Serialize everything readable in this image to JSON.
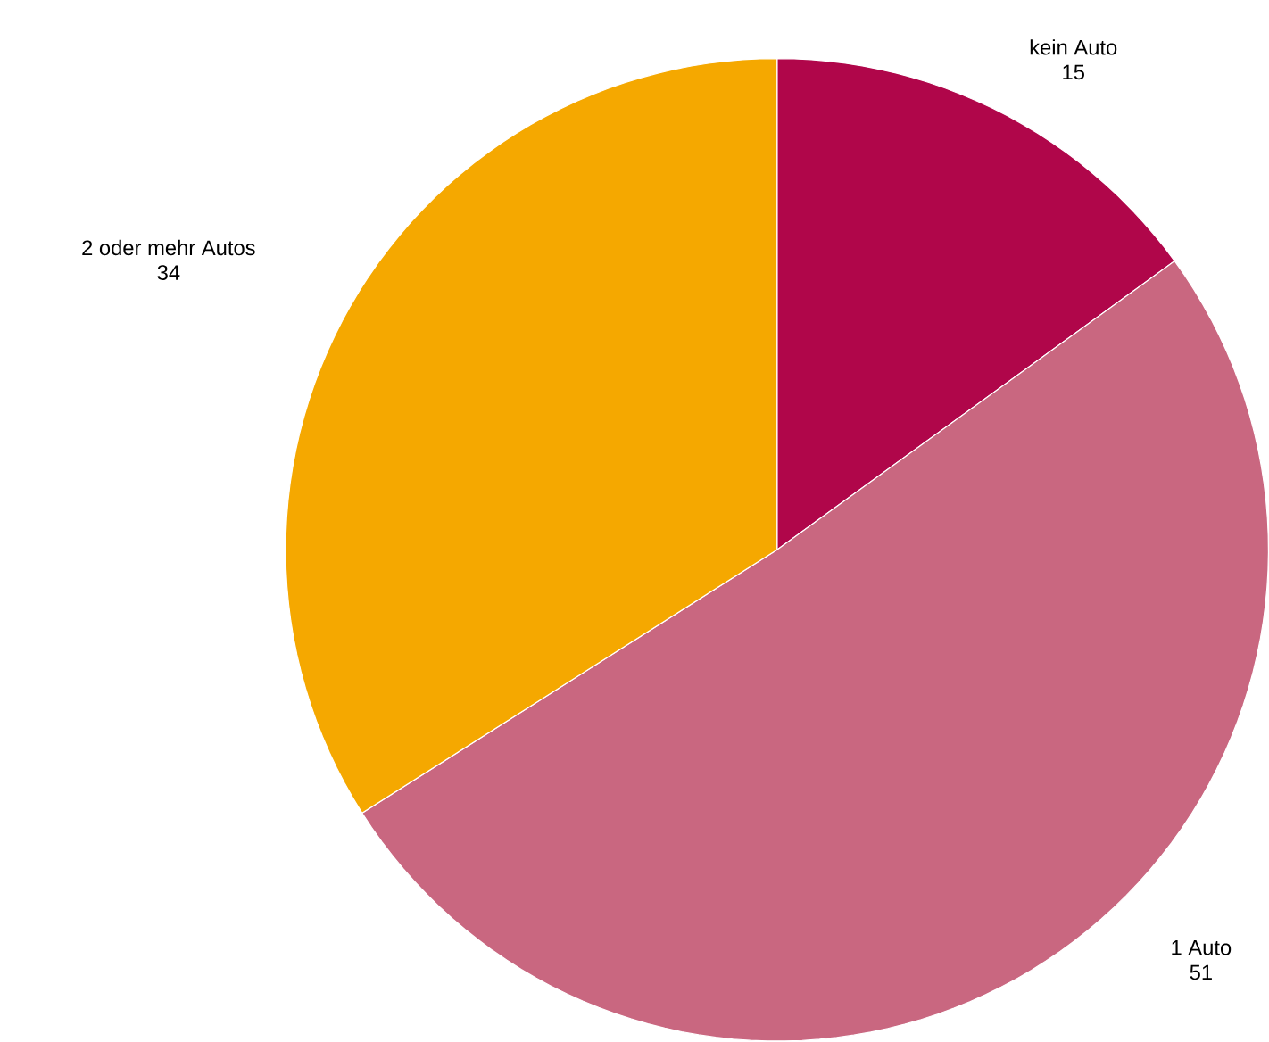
{
  "chart_data": {
    "type": "pie",
    "categories": [
      "kein Auto",
      "1 Auto",
      "2 oder mehr Autos"
    ],
    "values": [
      15,
      51,
      34
    ],
    "colors": [
      "#b0064a",
      "#c96780",
      "#f5a800"
    ],
    "data_labels": true
  }
}
